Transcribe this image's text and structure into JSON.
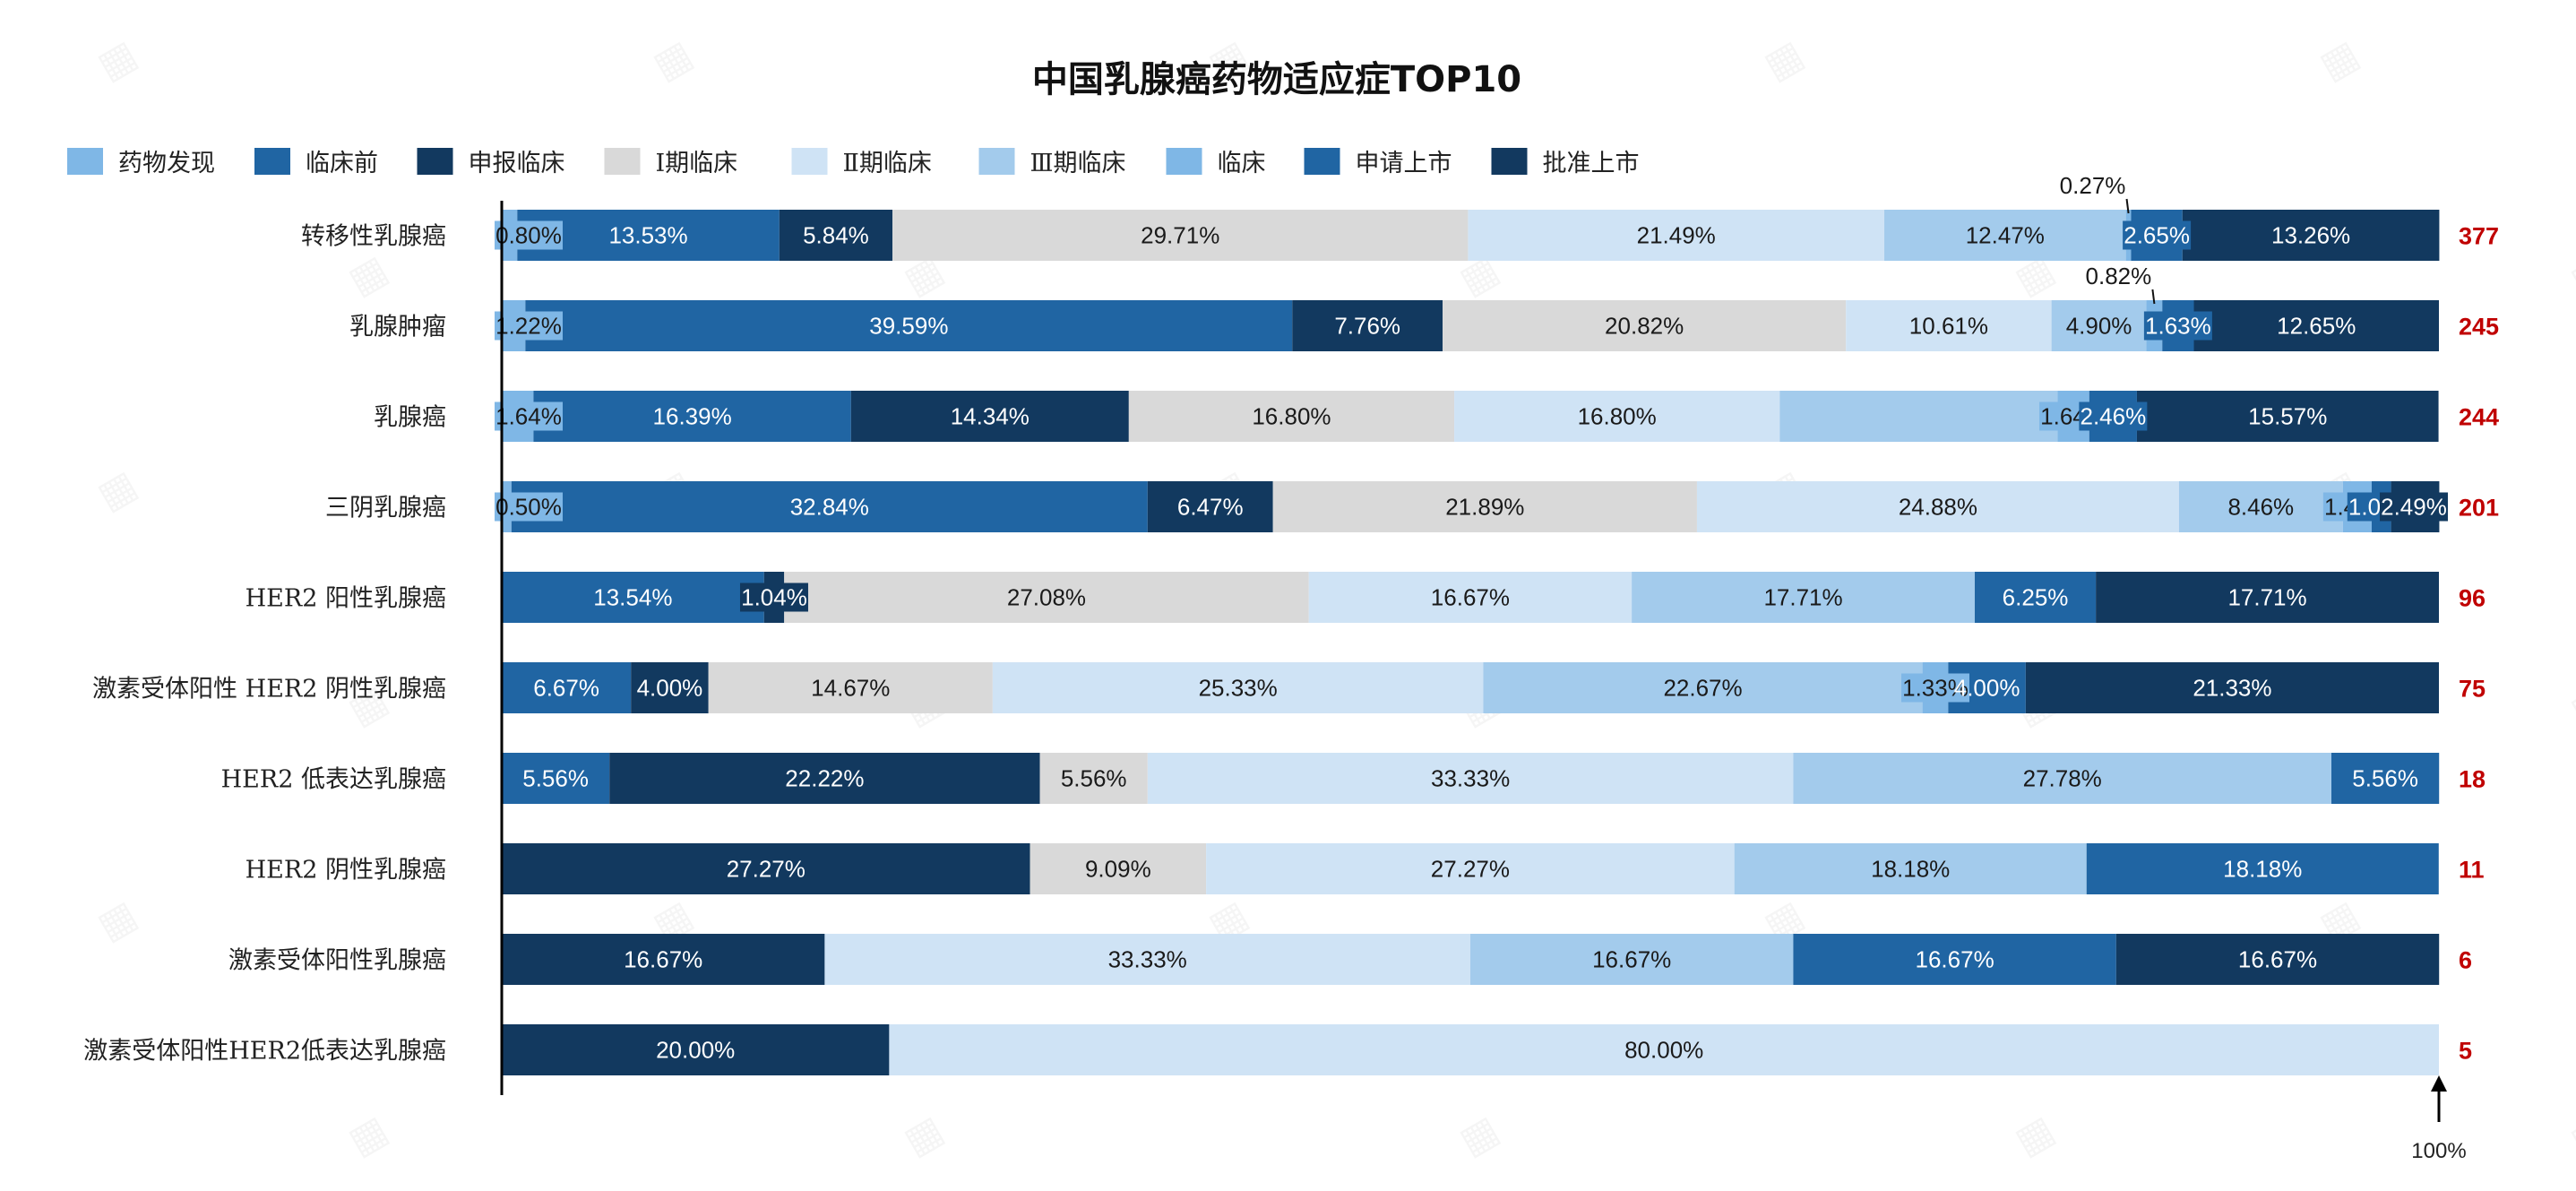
{
  "chart_data": {
    "type": "bar",
    "orientation": "horizontal",
    "stacked": "percent",
    "title": "中国乳腺癌药物适应症TOP10",
    "legend_position": "top-left",
    "grid": false,
    "xlim": [
      0,
      100
    ],
    "axis_end_label": "100%",
    "categories": [
      "转移性乳腺癌",
      "乳腺肿瘤",
      "乳腺癌",
      "三阴乳腺癌",
      "HER2 阳性乳腺癌",
      "激素受体阳性 HER2 阴性乳腺癌",
      "HER2 低表达乳腺癌",
      "HER2 阴性乳腺癌",
      "激素受体阳性乳腺癌",
      "激素受体阳性HER2低表达乳腺癌"
    ],
    "totals": [
      "377",
      "245",
      "244",
      "201",
      "96",
      "75",
      "18",
      "11",
      "6",
      "5"
    ],
    "series": [
      {
        "name": "药物发现",
        "color": "#7FB7E6",
        "values": [
          0.8,
          1.22,
          1.64,
          0.5,
          0,
          0,
          0,
          0,
          0,
          0
        ],
        "labels": [
          "0.80%",
          "1.22%",
          "1.64%",
          "0.50%",
          "",
          "",
          "",
          "",
          "",
          ""
        ]
      },
      {
        "name": "临床前",
        "color": "#2065A3",
        "values": [
          13.53,
          39.59,
          16.39,
          32.84,
          13.54,
          6.67,
          5.56,
          0,
          0,
          0
        ],
        "labels": [
          "13.53%",
          "39.59%",
          "16.39%",
          "32.84%",
          "13.54%",
          "6.67%",
          "5.56%",
          "",
          "",
          ""
        ]
      },
      {
        "name": "申报临床",
        "color": "#12395F",
        "values": [
          5.84,
          7.76,
          14.34,
          6.47,
          1.04,
          4.0,
          22.22,
          27.27,
          16.67,
          20.0
        ],
        "labels": [
          "5.84%",
          "7.76%",
          "14.34%",
          "6.47%",
          "1.04%",
          "4.00%",
          "22.22%",
          "27.27%",
          "16.67%",
          "20.00%"
        ]
      },
      {
        "name": "Ⅰ期临床",
        "color": "#D9D9D9",
        "values": [
          29.71,
          20.82,
          16.8,
          21.89,
          27.08,
          14.67,
          5.56,
          9.09,
          0,
          0
        ],
        "labels": [
          "29.71%",
          "20.82%",
          "16.80%",
          "21.89%",
          "27.08%",
          "14.67%",
          "5.56%",
          "9.09%",
          "",
          ""
        ]
      },
      {
        "name": "Ⅱ期临床",
        "color": "#CFE3F5",
        "values": [
          21.49,
          10.61,
          16.8,
          24.88,
          16.67,
          25.33,
          33.33,
          27.27,
          33.33,
          80.0
        ],
        "labels": [
          "21.49%",
          "10.61%",
          "16.80%",
          "24.88%",
          "16.67%",
          "25.33%",
          "33.33%",
          "27.27%",
          "33.33%",
          "80.00%"
        ]
      },
      {
        "name": "Ⅲ期临床",
        "color": "#A3CBEC",
        "values": [
          12.47,
          4.9,
          14.34,
          8.46,
          17.71,
          22.67,
          27.78,
          18.18,
          16.67,
          0
        ],
        "labels": [
          "12.47%",
          "4.90%",
          "",
          "8.46%",
          "17.71%",
          "22.67%",
          "27.78%",
          "18.18%",
          "16.67%",
          ""
        ]
      },
      {
        "name": "临床",
        "color": "#7FB7E6",
        "values": [
          0.27,
          0.82,
          1.64,
          1.49,
          0,
          1.33,
          0,
          0,
          0,
          0
        ],
        "labels": [
          "0.27%",
          "0.82%",
          "1.64%",
          "1.49%",
          "",
          "1.33%",
          "",
          "",
          "",
          ""
        ]
      },
      {
        "name": "申请上市",
        "color": "#2065A3",
        "values": [
          2.65,
          1.63,
          2.46,
          1.0,
          6.25,
          4.0,
          5.56,
          18.18,
          16.67,
          0
        ],
        "labels": [
          "2.65%",
          "1.63%",
          "2.46%",
          "1.00%",
          "6.25%",
          "4.00%",
          "5.56%",
          "18.18%",
          "16.67%",
          ""
        ]
      },
      {
        "name": "批准上市",
        "color": "#12395F",
        "values": [
          13.26,
          12.65,
          15.57,
          2.49,
          17.71,
          21.33,
          0,
          0,
          16.67,
          0
        ],
        "labels": [
          "13.26%",
          "12.65%",
          "15.57%",
          "2.49%",
          "17.71%",
          "21.33%",
          "",
          "",
          "16.67%",
          ""
        ]
      }
    ]
  }
}
